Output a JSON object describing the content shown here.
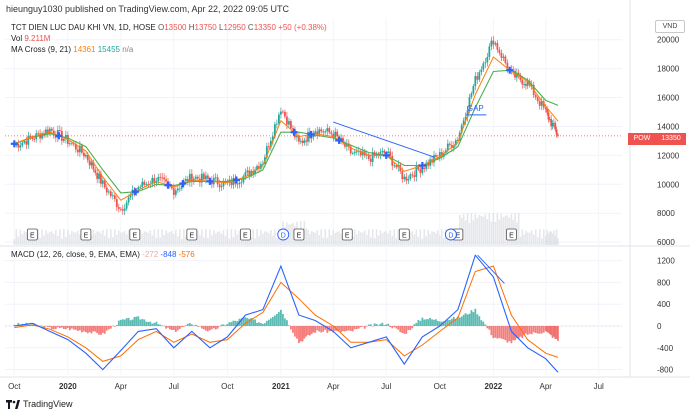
{
  "header": {
    "publisher_line": "hieunguy1030 published on TradingView.com, Apr 22, 2022 09:05 UTC"
  },
  "legend": {
    "symbol": "TCT DIEN LUC DAU KHI VN, 1D, HOSE",
    "open_label": "O",
    "open": "13500",
    "high_label": "H",
    "high": "13750",
    "low_label": "L",
    "low": "12950",
    "close_label": "C",
    "close": "13350",
    "change": "+50 (+0.38%)",
    "vol_label": "Vol",
    "vol": "9.211M",
    "ma_label": "MA Cross (9, 21)",
    "ma_fast": "14361",
    "ma_slow": "15455",
    "ma_na": "n/a"
  },
  "currency": "VND",
  "price_tag": {
    "symbol": "POW",
    "value": "13350"
  },
  "macd_legend": {
    "label": "MACD (12, 26, close, 9, EMA, EMA)",
    "hist": "-272",
    "macd": "-848",
    "signal": "-576"
  },
  "annotations": {
    "gap": "GAP"
  },
  "earnings_marker": "E",
  "dividend_marker": "D",
  "footer": {
    "brand": "TradingView"
  },
  "colors": {
    "up": "#26a69a",
    "down": "#ef5350",
    "ma_fast": "#ff7f0e",
    "ma_slow": "#4caf50",
    "macd": "#2962ff",
    "signal": "#ff6d00",
    "cross": "#2962ff",
    "trendline": "#2962ff"
  },
  "chart_data": [
    {
      "type": "line",
      "name_hint": "price",
      "x": [
        "2019-10-01",
        "2019-11-01",
        "2019-12-01",
        "2020-01-01",
        "2020-02-01",
        "2020-03-01",
        "2020-04-01",
        "2020-05-01",
        "2020-06-01",
        "2020-07-01",
        "2020-08-01",
        "2020-09-01",
        "2020-10-01",
        "2020-11-01",
        "2020-12-01",
        "2021-01-01",
        "2021-02-01",
        "2021-03-01",
        "2021-04-01",
        "2021-05-01",
        "2021-06-01",
        "2021-07-01",
        "2021-08-01",
        "2021-09-01",
        "2021-10-01",
        "2021-11-01",
        "2021-12-01",
        "2022-01-01",
        "2022-02-01",
        "2022-03-01",
        "2022-04-01",
        "2022-04-22"
      ],
      "series": [
        {
          "values": [
            12700,
            13200,
            13800,
            13000,
            12000,
            10000,
            8300,
            9800,
            10400,
            9600,
            10500,
            10300,
            10000,
            10600,
            11600,
            15300,
            12800,
            13800,
            13500,
            12200,
            11800,
            12200,
            10400,
            11200,
            12000,
            13200,
            17200,
            20000,
            17600,
            17000,
            15000,
            13350
          ]
        },
        {
          "values": [
            12800,
            13300,
            13600,
            13100,
            12300,
            10500,
            8900,
            9600,
            10200,
            9800,
            10300,
            10200,
            10100,
            10500,
            11300,
            14400,
            13300,
            13500,
            13300,
            12500,
            12000,
            12000,
            10900,
            11300,
            11900,
            12900,
            16200,
            18800,
            17800,
            17100,
            15400,
            14361
          ]
        },
        {
          "values": [
            12800,
            13250,
            13500,
            13200,
            12600,
            11000,
            9400,
            9500,
            10000,
            9900,
            10200,
            10200,
            10200,
            10400,
            11000,
            13600,
            13600,
            13400,
            13200,
            12700,
            12200,
            12000,
            11300,
            11300,
            11800,
            12600,
            15300,
            17800,
            17900,
            17200,
            15800,
            15455
          ]
        }
      ],
      "ylim": [
        5800,
        21500
      ],
      "yticks": [
        "20000",
        "18000",
        "16000",
        "14000",
        "12000",
        "10000",
        "8000",
        "6000"
      ],
      "xticks": [
        "Oct",
        "2020",
        "Apr",
        "Jul",
        "Oct",
        "2021",
        "Apr",
        "Jul",
        "Oct",
        "2022",
        "Apr",
        "Jul"
      ]
    },
    {
      "type": "line",
      "name_hint": "macd",
      "x": [
        "2019-10-01",
        "2019-11-01",
        "2019-12-01",
        "2020-01-01",
        "2020-02-01",
        "2020-03-01",
        "2020-04-01",
        "2020-05-01",
        "2020-06-01",
        "2020-07-01",
        "2020-08-01",
        "2020-09-01",
        "2020-10-01",
        "2020-11-01",
        "2020-12-01",
        "2021-01-01",
        "2021-02-01",
        "2021-03-01",
        "2021-04-01",
        "2021-05-01",
        "2021-06-01",
        "2021-07-01",
        "2021-08-01",
        "2021-09-01",
        "2021-10-01",
        "2021-11-01",
        "2021-12-01",
        "2022-01-01",
        "2022-02-01",
        "2022-03-01",
        "2022-04-01",
        "2022-04-22"
      ],
      "series": [
        {
          "values": [
            0,
            50,
            -100,
            -250,
            -500,
            -800,
            -450,
            -100,
            -50,
            -400,
            -100,
            -400,
            -200,
            200,
            300,
            1100,
            200,
            100,
            -100,
            -400,
            -300,
            -200,
            -700,
            -200,
            0,
            300,
            1300,
            900,
            -100,
            -400,
            -600,
            -848
          ]
        },
        {
          "values": [
            -30,
            20,
            -60,
            -200,
            -400,
            -650,
            -550,
            -250,
            -100,
            -300,
            -150,
            -300,
            -250,
            50,
            250,
            800,
            500,
            200,
            0,
            -300,
            -300,
            -250,
            -550,
            -350,
            -100,
            150,
            1000,
            1100,
            200,
            -250,
            -500,
            -576
          ]
        },
        {
          "values": [
            30,
            30,
            -40,
            -50,
            -100,
            -150,
            100,
            150,
            50,
            -100,
            50,
            -100,
            50,
            150,
            50,
            300,
            -300,
            -100,
            -100,
            -100,
            0,
            50,
            -150,
            150,
            100,
            150,
            300,
            -200,
            -300,
            -150,
            -100,
            -272
          ]
        }
      ],
      "ylim": [
        -900,
        1450
      ],
      "yticks": [
        "1200",
        "800",
        "400",
        "0",
        "-400",
        "-800"
      ]
    }
  ]
}
